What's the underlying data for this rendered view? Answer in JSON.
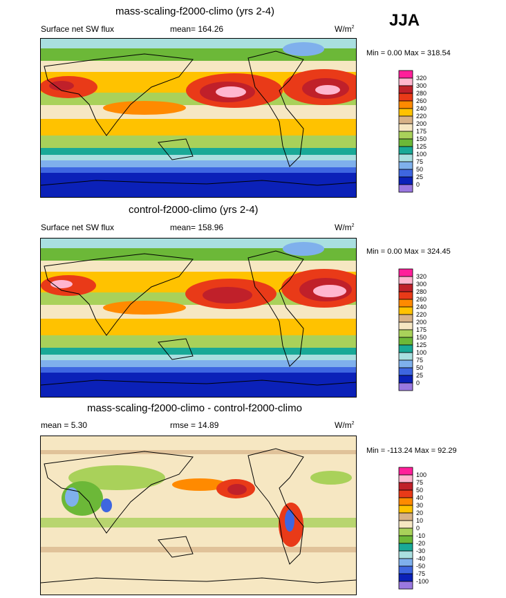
{
  "season": "JJA",
  "panels": [
    {
      "title": "mass-scaling-f2000-climo (yrs 2-4)",
      "left_label": "Surface net SW flux",
      "center_label": "mean= 164.26",
      "units": "W/m",
      "units_sup": "2",
      "minmax": "Min =   0.00 Max = 318.54",
      "levels": [
        "320",
        "300",
        "280",
        "260",
        "240",
        "220",
        "200",
        "175",
        "150",
        "125",
        "100",
        "75",
        "50",
        "25",
        "0"
      ],
      "colors": [
        "#ff1f9a",
        "#ffb6cf",
        "#c0202a",
        "#e93a18",
        "#ff8a00",
        "#ffc200",
        "#d7b287",
        "#f6e7c2",
        "#a9d15a",
        "#6cb838",
        "#19a997",
        "#a9dfe0",
        "#7fb0ec",
        "#3e66e0",
        "#0b21b8",
        "#9a78e0"
      ]
    },
    {
      "title": "control-f2000-climo (yrs 2-4)",
      "left_label": "Surface net SW flux",
      "center_label": "mean= 158.96",
      "units": "W/m",
      "units_sup": "2",
      "minmax": "Min =   0.00 Max = 324.45",
      "levels": [
        "320",
        "300",
        "280",
        "260",
        "240",
        "220",
        "200",
        "175",
        "150",
        "125",
        "100",
        "75",
        "50",
        "25",
        "0"
      ],
      "colors": [
        "#ff1f9a",
        "#ffb6cf",
        "#c0202a",
        "#e93a18",
        "#ff8a00",
        "#ffc200",
        "#d7b287",
        "#f6e7c2",
        "#a9d15a",
        "#6cb838",
        "#19a997",
        "#a9dfe0",
        "#7fb0ec",
        "#3e66e0",
        "#0b21b8",
        "#9a78e0"
      ]
    },
    {
      "title": "mass-scaling-f2000-climo - control-f2000-climo",
      "left_label": "mean =   5.30",
      "center_label": "rmse =  14.89",
      "units": "W/m",
      "units_sup": "2",
      "minmax": "Min = -113.24 Max =  92.29",
      "levels": [
        "100",
        "75",
        "50",
        "40",
        "30",
        "20",
        "10",
        "0",
        "-10",
        "-20",
        "-30",
        "-40",
        "-50",
        "-75",
        "-100"
      ],
      "colors": [
        "#ff1f9a",
        "#ffb6cf",
        "#c0202a",
        "#e93a18",
        "#ff8a00",
        "#ffc200",
        "#d7b287",
        "#f6e7c2",
        "#a9d15a",
        "#6cb838",
        "#19a997",
        "#a9dfe0",
        "#7fb0ec",
        "#3e66e0",
        "#0b21b8",
        "#9a78e0"
      ]
    }
  ]
}
